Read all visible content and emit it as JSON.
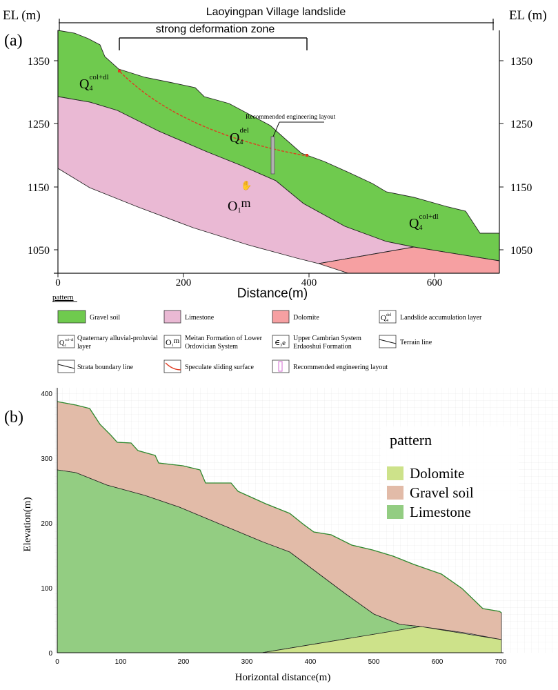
{
  "panel_a": {
    "label": "(a)",
    "title": "Laoyingpan Village landslide",
    "zone_label": "strong deformation zone",
    "el_left": "EL (m)",
    "el_right": "EL (m)",
    "y_ticks": [
      "1350",
      "1250",
      "1150",
      "1050"
    ],
    "x_ticks": [
      "0",
      "200",
      "400",
      "600"
    ],
    "x_label": "Distance(m)",
    "engineering_label": "Recommended engineering layout",
    "units": {
      "q4_col_base": "Q",
      "q4_col_sub": "4",
      "q4_col_sup": "col+dl",
      "q4_del_base": "Q",
      "q4_del_sub": "4",
      "q4_del_sup": "del",
      "o1m_base": "O",
      "o1m_sub": "1",
      "o1m_tail": "m",
      "q4_col2_base": "Q",
      "q4_col2_sub": "4",
      "q4_col2_sup": "col+dl"
    },
    "legend": {
      "title": "pattern",
      "items": [
        {
          "label": "Gravel soil",
          "color": "#6fca4e"
        },
        {
          "label": "Limestone",
          "color": "#eab9d4"
        },
        {
          "label": "Dolomite",
          "color": "#f6a0a2"
        },
        {
          "label": "Landslide accumulation layer",
          "symbol": "Q4del"
        },
        {
          "label": "Quaternary alluvial-proluvial layer",
          "symbol": "Q4col+dl"
        },
        {
          "label": "Meitan Formation of Lower Ordovician System",
          "symbol": "O1m"
        },
        {
          "label": "Upper Cambrian System Erdaoshui Formation",
          "symbol": "∈3e"
        },
        {
          "label": "Terrain line"
        },
        {
          "label": "Strata boundary line"
        },
        {
          "label": "Speculate sliding surface"
        },
        {
          "label": "Recommended engineering layout"
        }
      ],
      "sym_q_del": "Q",
      "sym_q_del_sub": "4",
      "sym_q_del_sup": "del",
      "sym_q_col": "Q",
      "sym_q_col_sub": "4",
      "sym_q_col_sup": "col+dl",
      "sym_o": "O",
      "sym_o_sub": "1",
      "sym_o_tail": "m",
      "sym_e": "∈",
      "sym_e_sub": "3",
      "sym_e_tail": "e"
    }
  },
  "panel_b": {
    "label": "(b)",
    "y_label": "Elevation(m)",
    "x_label": "Horizontal distance(m)",
    "y_ticks": [
      "0",
      "100",
      "200",
      "300",
      "400"
    ],
    "x_ticks": [
      "0",
      "100",
      "200",
      "300",
      "400",
      "500",
      "600",
      "700"
    ],
    "legend_title": "pattern",
    "legend": [
      {
        "label": "Dolomite",
        "color": "#cde28a"
      },
      {
        "label": "Gravel soil",
        "color": "#e2bba8"
      },
      {
        "label": "Limestone",
        "color": "#93cd82"
      }
    ]
  },
  "colors": {
    "gravel_a": "#6fca4e",
    "limestone_a": "#eab9d4",
    "dolomite_a": "#f6a0a2",
    "gravel_b": "#e2bba8",
    "limestone_b": "#93cd82",
    "dolomite_b": "#cde28a",
    "sliding": "#e03a20",
    "terrain_b": "#2e8a2e"
  }
}
